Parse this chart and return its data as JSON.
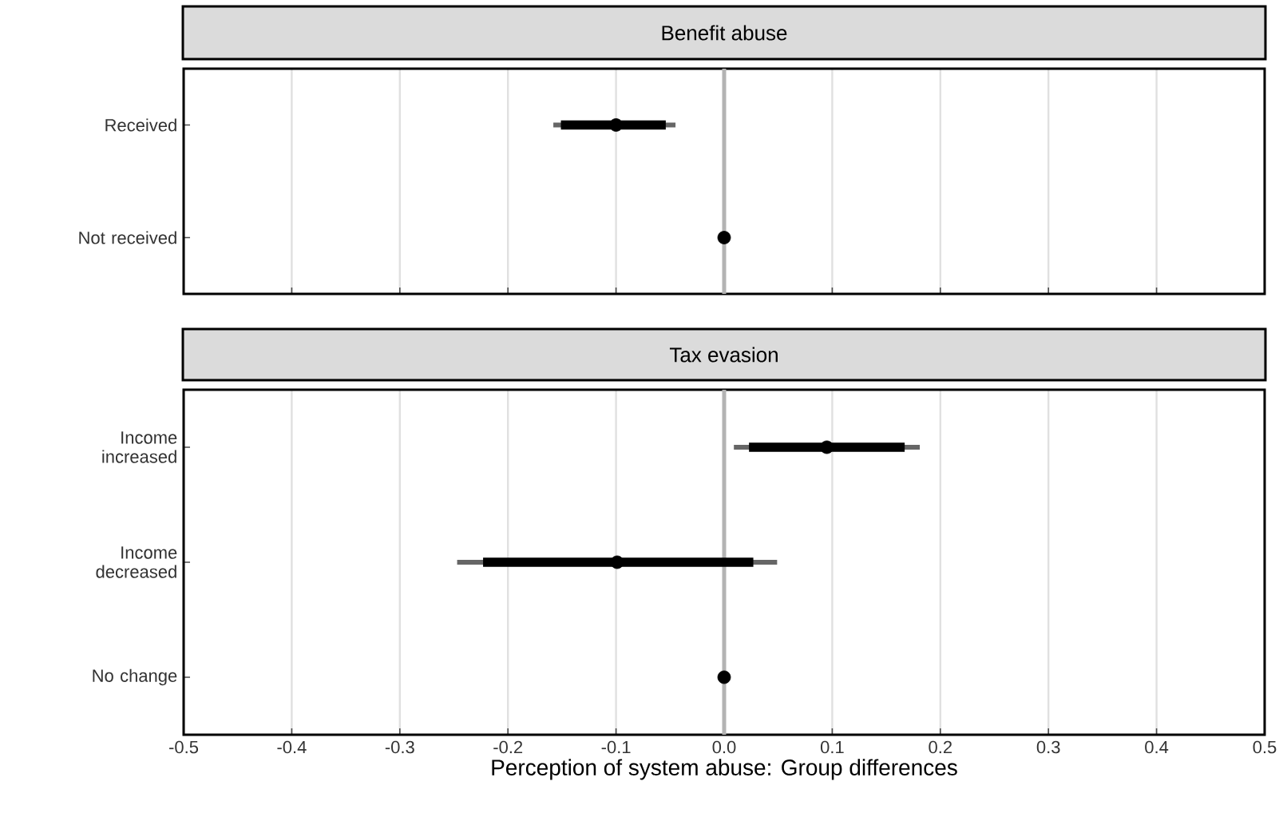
{
  "chart_data": [
    {
      "type": "scatter",
      "orientation": "horizontal",
      "title": "Benefit abuse",
      "categories": [
        "Received",
        "Not received"
      ],
      "xlim": [
        -0.5,
        0.5
      ],
      "xticks": [
        -0.5,
        -0.4,
        -0.3,
        -0.2,
        -0.1,
        0,
        0.1,
        0.2,
        0.3,
        0.4,
        0.5
      ],
      "tick_labels": "y",
      "grid": "x",
      "ref_lines": [
        {
          "axis": "x",
          "value": 0,
          "color": "#b3b3b3"
        }
      ],
      "series": [
        {
          "type": "bar",
          "color": "#000000",
          "base": [
            -0.151,
            null
          ],
          "values": [
            0.097,
            null
          ]
        },
        {
          "color": "#000000",
          "marker": "circle",
          "values": [
            -0.1,
            0
          ],
          "errors": [
            [
              -0.158,
              -0.045
            ],
            null
          ]
        }
      ]
    },
    {
      "type": "scatter",
      "orientation": "horizontal",
      "title": "Tax evasion",
      "xlabel": "Perception of system abuse: Group differences",
      "categories": [
        "Income increased",
        "Income decreased",
        "No change"
      ],
      "xlim": [
        -0.5,
        0.5
      ],
      "xticks": [
        -0.5,
        -0.4,
        -0.3,
        -0.2,
        -0.1,
        {
          "value": 0,
          "label": "0.0"
        },
        0.1,
        0.2,
        0.3,
        0.4,
        0.5
      ],
      "grid": "x",
      "ref_lines": [
        {
          "axis": "x",
          "value": 0,
          "color": "#b3b3b3"
        }
      ],
      "series": [
        {
          "type": "bar",
          "color": "#000000",
          "base": [
            0.023,
            -0.223,
            null
          ],
          "values": [
            0.144,
            0.25,
            null
          ]
        },
        {
          "color": "#000000",
          "marker": "circle",
          "values": [
            0.095,
            -0.099,
            0
          ],
          "errors": [
            [
              0.009,
              0.181
            ],
            [
              -0.247,
              0.049
            ],
            null
          ]
        }
      ]
    }
  ]
}
